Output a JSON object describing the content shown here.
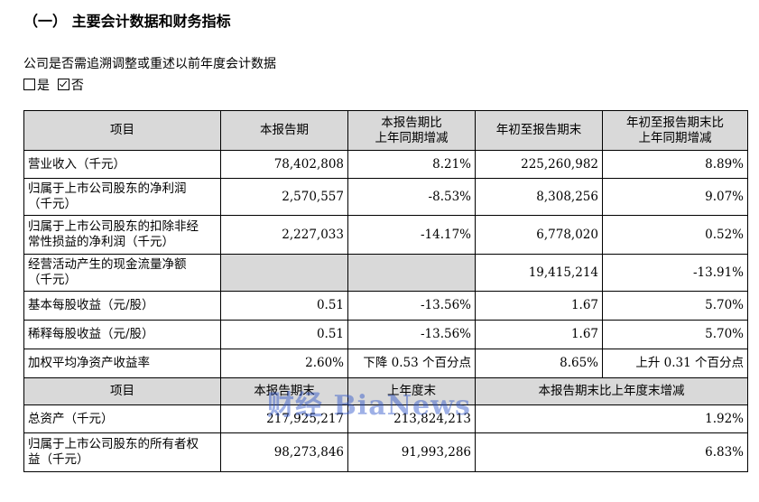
{
  "heading": "（一） 主要会计数据和财务指标",
  "question": "公司是否需追溯调整或重述以前年度会计数据",
  "answer": {
    "yes": "是",
    "no": "否",
    "selected": "否"
  },
  "table1": {
    "headers": [
      "项目",
      "本报告期",
      "本报告期比\n上年同期增减",
      "年初至报告期末",
      "年初至报告期末比\n上年同期增减"
    ],
    "rows": [
      {
        "label": "营业收入（千元）",
        "c1": "78,402,808",
        "c2": "8.21%",
        "c3": "225,260,982",
        "c4": "8.89%"
      },
      {
        "label": "归属于上市公司股东的净利润\n（千元）",
        "c1": "2,570,557",
        "c2": "-8.53%",
        "c3": "8,308,256",
        "c4": "9.07%"
      },
      {
        "label": "归属于上市公司股东的扣除非经\n常性损益的净利润（千元）",
        "c1": "2,227,033",
        "c2": "-14.17%",
        "c3": "6,778,020",
        "c4": "0.52%"
      },
      {
        "label": "经营活动产生的现金流量净额\n（千元）",
        "c1": "",
        "c2": "",
        "c3": "19,415,214",
        "c4": "-13.91%"
      },
      {
        "label": "基本每股收益（元/股）",
        "c1": "0.51",
        "c2": "-13.56%",
        "c3": "1.67",
        "c4": "5.70%"
      },
      {
        "label": "稀释每股收益（元/股）",
        "c1": "0.51",
        "c2": "-13.56%",
        "c3": "1.67",
        "c4": "5.70%"
      },
      {
        "label": "加权平均净资产收益率",
        "c1": "2.60%",
        "c2": "下降 0.53 个百分点",
        "c3": "8.65%",
        "c4": "上升 0.31 个百分点"
      }
    ]
  },
  "table2": {
    "headers": [
      "项目",
      "本报告期末",
      "上年度末",
      "本报告期末比上年度末增减"
    ],
    "rows": [
      {
        "label": "总资产（千元）",
        "c1": "217,925,217",
        "c2": "213,824,213",
        "c3": "1.92%"
      },
      {
        "label": "归属于上市公司股东的所有者权\n益（千元）",
        "c1": "98,273,846",
        "c2": "91,993,286",
        "c3": "6.83%"
      }
    ]
  },
  "watermark": "财经 BiaNews"
}
